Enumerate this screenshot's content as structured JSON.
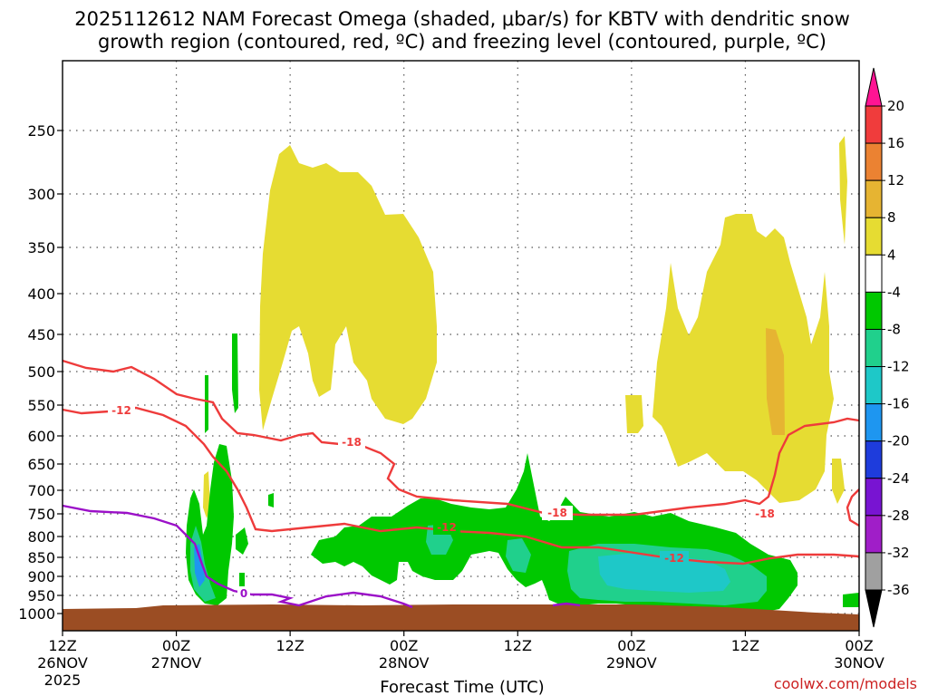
{
  "chart_data": {
    "type": "heatmap",
    "title_lines": [
      "2025112612 NAM Forecast Omega (shaded, μbar/s) for KBTV with dendritic snow",
      "growth region (contoured, red, ºC) and freezing level (contoured, purple, ºC)"
    ],
    "xlabel": "Forecast Time (UTC)",
    "xlim_hours": [
      0,
      84
    ],
    "x_ticks": [
      {
        "h": 0,
        "l1": "12Z",
        "l2": "26NOV",
        "l3": "2025"
      },
      {
        "h": 12,
        "l1": "00Z",
        "l2": "27NOV",
        "l3": ""
      },
      {
        "h": 24,
        "l1": "12Z",
        "l2": "",
        "l3": ""
      },
      {
        "h": 36,
        "l1": "00Z",
        "l2": "28NOV",
        "l3": ""
      },
      {
        "h": 48,
        "l1": "12Z",
        "l2": "",
        "l3": ""
      },
      {
        "h": 60,
        "l1": "00Z",
        "l2": "29NOV",
        "l3": ""
      },
      {
        "h": 72,
        "l1": "12Z",
        "l2": "",
        "l3": ""
      },
      {
        "h": 84,
        "l1": "00Z",
        "l2": "30NOV",
        "l3": ""
      }
    ],
    "y_ticks": [
      "250",
      "300",
      "350",
      "400",
      "450",
      "500",
      "550",
      "600",
      "650",
      "700",
      "750",
      "800",
      "850",
      "900",
      "950",
      "1000"
    ],
    "colorbar": {
      "labels": [
        "20",
        "16",
        "12",
        "8",
        "4",
        "-4",
        "-8",
        "-12",
        "-16",
        "-20",
        "-24",
        "-28",
        "-32",
        "-36"
      ],
      "colors": [
        "#ff1493",
        "#f03c3c",
        "#eb8232",
        "#e6b432",
        "#e6dc32",
        "#ffffff",
        "#00c800",
        "#20d08c",
        "#1ec8c8",
        "#1e96f0",
        "#1e3cdc",
        "#7814d2",
        "#a01ec8",
        "#a0a0a0",
        "#000000"
      ]
    },
    "contour_labels": {
      "red_12_left": "-12",
      "red_18_mid": "-18",
      "red_12_mid": "-12",
      "red_18_right_a": "-18",
      "red_18_right_b": "-18",
      "red_12_right": "-12",
      "purple_0": "0"
    },
    "colors": {
      "yellow": "#e6dc32",
      "darkyellow": "#e6b432",
      "green": "#00c800",
      "teal": "#20d08c",
      "cyan": "#1ec8c8",
      "blue": "#1e96f0",
      "terrain": "#9b4d23",
      "red_contour": "#ee3b3b",
      "purple_contour": "#9b10c8"
    },
    "credit": "coolwx.com/models"
  }
}
